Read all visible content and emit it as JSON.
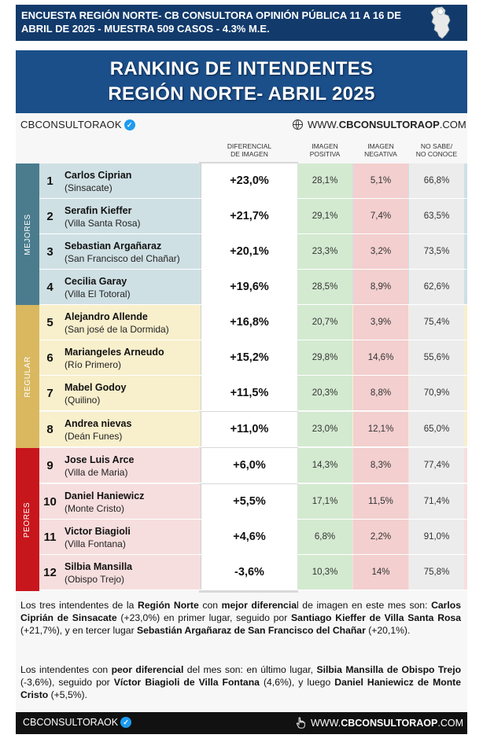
{
  "header": {
    "line1": "ENCUESTA REGIÓN NORTE- CB CONSULTORA OPINIÓN PÚBLICA 11 A 16 DE",
    "line2": "ABRIL  DE 2025 - MUESTRA 509 CASOS - 4.3% M.E."
  },
  "title": {
    "line1": "RANKING DE INTENDENTES",
    "line2": "REGIÓN NORTE- ABRIL 2025"
  },
  "brand": {
    "handle": "CBCONSULTORAOK",
    "web_prefix": "WWW.",
    "web_bold": "CBCONSULTORAOP",
    "web_suffix": ".COM"
  },
  "columns": {
    "diff_l1": "DIFERENCIAL",
    "diff_l2": "DE IMAGEN",
    "pos_l1": "IMAGEN",
    "pos_l2": "POSITIVA",
    "neg_l1": "IMAGEN",
    "neg_l2": "NEGATIVA",
    "ns_l1": "NO SABE/",
    "ns_l2": "NO CONOCE"
  },
  "groups": {
    "mejores": "MEJORES",
    "regular": "REGULAR",
    "peores": "PEORES"
  },
  "rows": [
    {
      "rank": "1",
      "name": "Carlos Ciprian",
      "locality": "(Sinsacate)",
      "diff": "+23,0%",
      "pos": "28,1%",
      "neg": "5,1%",
      "ns": "66,8%"
    },
    {
      "rank": "2",
      "name": "Serafin Kieffer",
      "locality": "(Villa Santa Rosa)",
      "diff": "+21,7%",
      "pos": "29,1%",
      "neg": "7,4%",
      "ns": "63,5%"
    },
    {
      "rank": "3",
      "name": "Sebastian Argañaraz",
      "locality": "(San Francisco del Chañar)",
      "diff": "+20,1%",
      "pos": "23,3%",
      "neg": "3,2%",
      "ns": "73,5%"
    },
    {
      "rank": "4",
      "name": "Cecilia Garay",
      "locality": "(Villa El Totoral)",
      "diff": "+19,6%",
      "pos": "28,5%",
      "neg": "8,9%",
      "ns": "62,6%"
    },
    {
      "rank": "5",
      "name": "Alejandro Allende",
      "locality": "(San josé de la Dormida)",
      "diff": "+16,8%",
      "pos": "20,7%",
      "neg": "3,9%",
      "ns": "75,4%"
    },
    {
      "rank": "6",
      "name": "Mariangeles Arneudo",
      "locality": "(Río Primero)",
      "diff": "+15,2%",
      "pos": "29,8%",
      "neg": "14,6%",
      "ns": "55,6%"
    },
    {
      "rank": "7",
      "name": "Mabel Godoy",
      "locality": "(Quilino)",
      "diff": "+11,5%",
      "pos": "20,3%",
      "neg": "8,8%",
      "ns": "70,9%"
    },
    {
      "rank": "8",
      "name": "Andrea nievas",
      "locality": "(Deán Funes)",
      "diff": "+11,0%",
      "pos": "23,0%",
      "neg": "12,1%",
      "ns": "65,0%"
    },
    {
      "rank": "9",
      "name": "Jose Luis Arce",
      "locality": "(Villa de Maria)",
      "diff": "+6,0%",
      "pos": "14,3%",
      "neg": "8,3%",
      "ns": "77,4%"
    },
    {
      "rank": "10",
      "name": "Daniel Haniewicz",
      "locality": "(Monte Cristo)",
      "diff": "+5,5%",
      "pos": "17,1%",
      "neg": "11,5%",
      "ns": "71,4%"
    },
    {
      "rank": "11",
      "name": "Victor Biagioli",
      "locality": "(Villa Fontana)",
      "diff": "+4,6%",
      "pos": "6,8%",
      "neg": "2,2%",
      "ns": "91,0%"
    },
    {
      "rank": "12",
      "name": "Silbia Mansilla",
      "locality": "(Obispo Trejo)",
      "diff": "-3,6%",
      "pos": "10,3%",
      "neg": "14%",
      "ns": "75,8%"
    }
  ],
  "summary": {
    "p1": [
      {
        "t": "Los tres intendentes de la ",
        "b": false
      },
      {
        "t": "Región Norte",
        "b": true
      },
      {
        "t": " con ",
        "b": false
      },
      {
        "t": "mejor diferencia",
        "b": true
      },
      {
        "t": "l de imagen en este mes son: ",
        "b": false
      },
      {
        "t": "Carlos Ciprián de Sinsacate",
        "b": true
      },
      {
        "t": " (+23,0%) en primer lugar, seguido por ",
        "b": false
      },
      {
        "t": "Santiago Kieffer de Villa Santa Rosa",
        "b": true
      },
      {
        "t": " (+21,7%), y en tercer lugar ",
        "b": false
      },
      {
        "t": "Sebastián Argañaraz de San Francisco del Chañar",
        "b": true
      },
      {
        "t": " (+20,1%).",
        "b": false
      }
    ],
    "p2": [
      {
        "t": "Los intendentes con ",
        "b": false
      },
      {
        "t": "peor diferencial",
        "b": true
      },
      {
        "t": " del mes son: en último lugar, ",
        "b": false
      },
      {
        "t": "Silbia Mansilla de Obispo Trejo",
        "b": true
      },
      {
        "t": " (-3,6%), seguido por ",
        "b": false
      },
      {
        "t": "Víctor Biagioli de Villa Fontana",
        "b": true
      },
      {
        "t": " (4,6%), y luego ",
        "b": false
      },
      {
        "t": "Daniel Haniewicz de Monte Cristo",
        "b": true
      },
      {
        "t": " (+5,5%).",
        "b": false
      }
    ]
  },
  "footer": {
    "handle": "CBCONSULTORAOK",
    "web_prefix": "WWW.",
    "web_bold": "CBCONSULTORAOP",
    "web_suffix": ".COM"
  },
  "colors": {
    "header_navy": "#123a6b",
    "title_blue": "#1b4f8a",
    "mejores": "#4a7c8e",
    "regular": "#d9b860",
    "peores": "#c8161d",
    "positive": "#d3ead0",
    "negative": "#f3cfcf"
  },
  "icons": [
    "province-map-icon",
    "verified-badge-icon",
    "globe-icon",
    "pointer-hand-icon"
  ]
}
